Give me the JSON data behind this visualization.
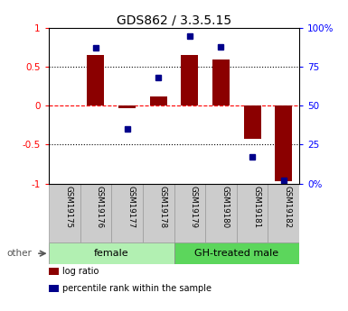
{
  "title": "GDS862 / 3.3.5.15",
  "samples": [
    "GSM19175",
    "GSM19176",
    "GSM19177",
    "GSM19178",
    "GSM19179",
    "GSM19180",
    "GSM19181",
    "GSM19182"
  ],
  "log_ratio": [
    0.0,
    0.65,
    -0.03,
    0.12,
    0.65,
    0.6,
    -0.42,
    -0.97
  ],
  "percentile_rank": [
    null,
    87,
    35,
    68,
    95,
    88,
    17,
    2
  ],
  "groups": [
    {
      "label": "female",
      "start": 0,
      "end": 3,
      "color": "#b2f0b2"
    },
    {
      "label": "GH-treated male",
      "start": 4,
      "end": 7,
      "color": "#5cd65c"
    }
  ],
  "bar_color": "#8B0000",
  "dot_color": "#00008B",
  "yticks_left": [
    -1.0,
    -0.5,
    0.0,
    0.5,
    1.0
  ],
  "ytick_labels_left": [
    "-1",
    "-0.5",
    "0",
    "0.5",
    "1"
  ],
  "yticks_right": [
    0,
    25,
    50,
    75,
    100
  ],
  "ytick_labels_right": [
    "0%",
    "25",
    "50",
    "75",
    "100%"
  ],
  "hline_vals": [
    0.5,
    0.0,
    -0.5
  ],
  "hline_colors": [
    "black",
    "red",
    "black"
  ],
  "hline_styles": [
    "dotted",
    "dashed",
    "dotted"
  ],
  "legend_items": [
    {
      "label": "log ratio",
      "color": "#8B0000"
    },
    {
      "label": "percentile rank within the sample",
      "color": "#00008B"
    }
  ],
  "other_label": "other",
  "sample_box_color": "#cccccc",
  "sample_box_edge": "#999999"
}
